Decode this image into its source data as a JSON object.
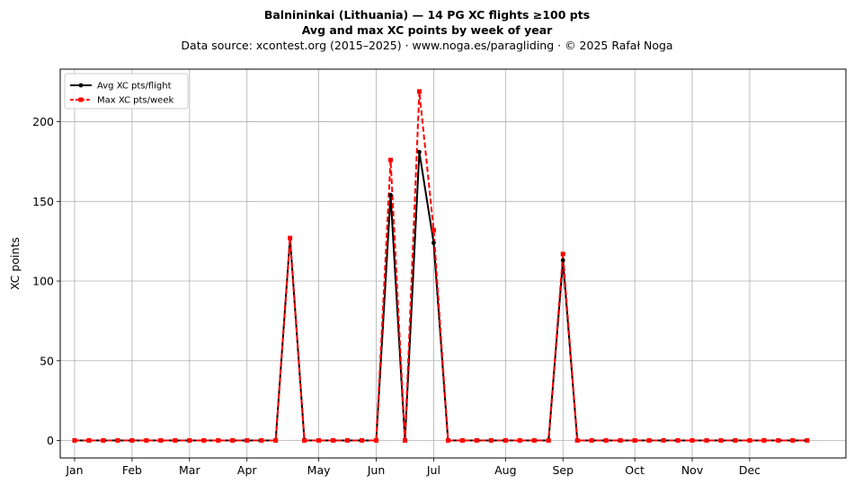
{
  "header": {
    "title": "Balnininkai (Lithuania)  —  14 PG XC flights ≥100 pts",
    "subtitle": "Avg and max XC points by week of year",
    "source": "Data source: xcontest.org (2015–2025)  ·  www.noga.es/paragliding  ·  © 2025 Rafał Noga"
  },
  "chart_data": {
    "type": "line",
    "xlabel": "",
    "ylabel": "XC points",
    "xlim": [
      0,
      54.7
    ],
    "ylim": [
      -11,
      233
    ],
    "yticks": [
      0,
      50,
      100,
      150,
      200
    ],
    "xticks": [
      {
        "label": "Jan",
        "x": 1
      },
      {
        "label": "Feb",
        "x": 5
      },
      {
        "label": "Mar",
        "x": 9
      },
      {
        "label": "Apr",
        "x": 13
      },
      {
        "label": "May",
        "x": 18
      },
      {
        "label": "Jun",
        "x": 22
      },
      {
        "label": "Jul",
        "x": 26
      },
      {
        "label": "Aug",
        "x": 31
      },
      {
        "label": "Sep",
        "x": 35
      },
      {
        "label": "Oct",
        "x": 40
      },
      {
        "label": "Nov",
        "x": 44
      },
      {
        "label": "Dec",
        "x": 48
      }
    ],
    "grid": true,
    "legend_position": "top-left",
    "x": [
      1,
      2,
      3,
      4,
      5,
      6,
      7,
      8,
      9,
      10,
      11,
      12,
      13,
      14,
      15,
      16,
      17,
      18,
      19,
      20,
      21,
      22,
      23,
      24,
      25,
      26,
      27,
      28,
      29,
      30,
      31,
      32,
      33,
      34,
      35,
      36,
      37,
      38,
      39,
      40,
      41,
      42,
      43,
      44,
      45,
      46,
      47,
      48,
      49,
      50,
      51,
      52
    ],
    "series": [
      {
        "name": "Avg XC pts/flight",
        "color": "#000000",
        "style": "solid-circle",
        "values": [
          0,
          0,
          0,
          0,
          0,
          0,
          0,
          0,
          0,
          0,
          0,
          0,
          0,
          0,
          0,
          127,
          0,
          0,
          0,
          0,
          0,
          0,
          154,
          0,
          181,
          124,
          0,
          0,
          0,
          0,
          0,
          0,
          0,
          0,
          113,
          0,
          0,
          0,
          0,
          0,
          0,
          0,
          0,
          0,
          0,
          0,
          0,
          0,
          0,
          0,
          0,
          0
        ]
      },
      {
        "name": "Max XC pts/week",
        "color": "#ff0000",
        "style": "dashed-square",
        "values": [
          0,
          0,
          0,
          0,
          0,
          0,
          0,
          0,
          0,
          0,
          0,
          0,
          0,
          0,
          0,
          127,
          0,
          0,
          0,
          0,
          0,
          0,
          176,
          0,
          219,
          132,
          0,
          0,
          0,
          0,
          0,
          0,
          0,
          0,
          117,
          0,
          0,
          0,
          0,
          0,
          0,
          0,
          0,
          0,
          0,
          0,
          0,
          0,
          0,
          0,
          0,
          0
        ]
      }
    ]
  }
}
